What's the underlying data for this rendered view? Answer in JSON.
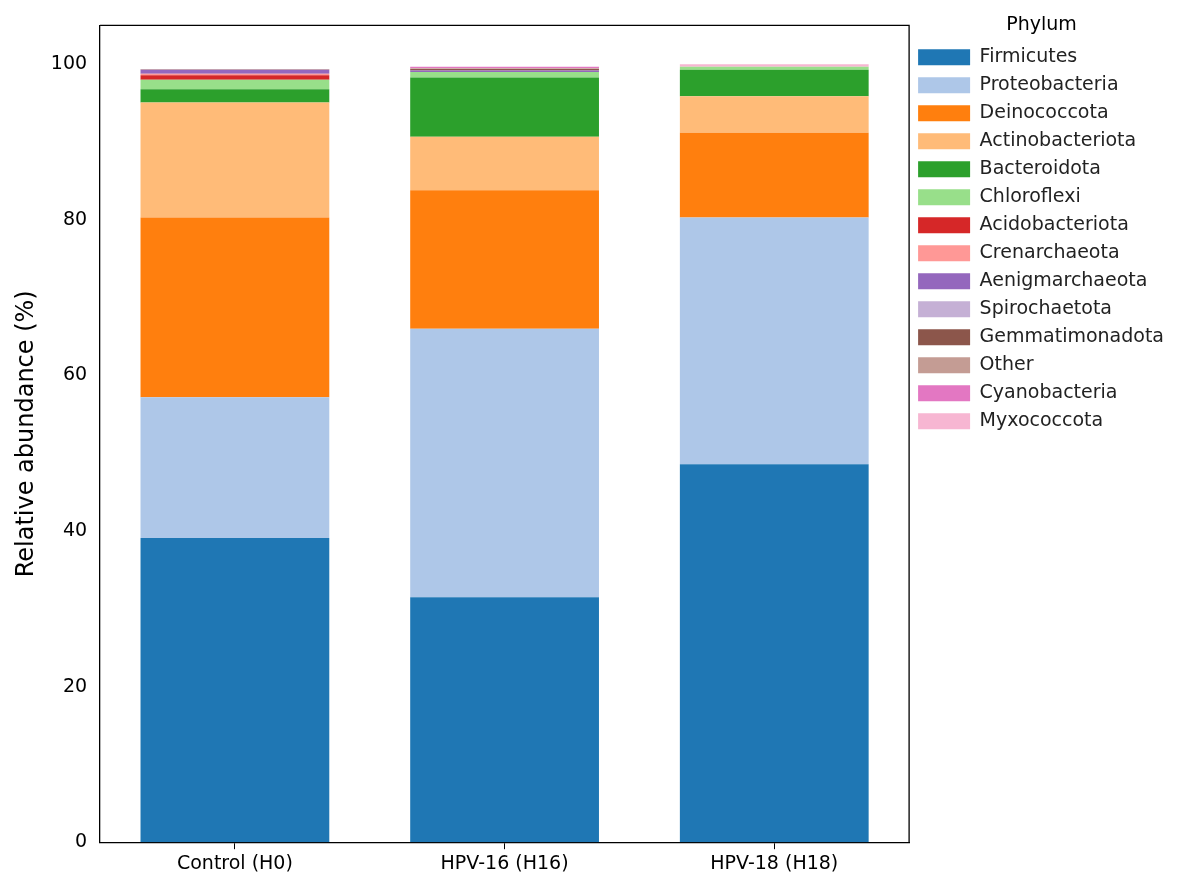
{
  "chart_data": {
    "type": "bar",
    "stacked": true,
    "ylabel": "Relative abundance (%)",
    "legend_title": "Phylum",
    "legend": "right",
    "grid": false,
    "categories": [
      "Control (H0)",
      "HPV-16 (H16)",
      "HPV-18 (H18)"
    ],
    "ylim": [
      0,
      105
    ],
    "yticks": [
      0,
      20,
      40,
      60,
      80,
      100
    ],
    "series": [
      {
        "name": "Firmicutes",
        "color": "#1f77b4",
        "values": [
          39.1,
          31.5,
          48.6
        ]
      },
      {
        "name": "Proteobacteria",
        "color": "#aec7e8",
        "values": [
          18.1,
          34.5,
          31.7
        ]
      },
      {
        "name": "Deinococcota",
        "color": "#ff7f0e",
        "values": [
          23.1,
          17.8,
          10.9
        ]
      },
      {
        "name": "Actinobacteriota",
        "color": "#ffbb78",
        "values": [
          14.8,
          6.9,
          4.7
        ]
      },
      {
        "name": "Bacteroidota",
        "color": "#2ca02c",
        "values": [
          1.7,
          7.6,
          3.4
        ]
      },
      {
        "name": "Chloroflexi",
        "color": "#98df8a",
        "values": [
          1.2,
          0.7,
          0.4
        ]
      },
      {
        "name": "Acidobacteriota",
        "color": "#d62728",
        "values": [
          0.6,
          null,
          0
        ]
      },
      {
        "name": "Crenarchaeota",
        "color": "#ff9896",
        "values": [
          0.2,
          0,
          0
        ]
      },
      {
        "name": "Aenigmarchaeota",
        "color": "#9467bd",
        "values": [
          0.5,
          0.2,
          0
        ]
      },
      {
        "name": "Spirochaetota",
        "color": "#c5b0d5",
        "values": [
          null,
          null,
          0
        ]
      },
      {
        "name": "Gemmatimonadota",
        "color": "#8c564b",
        "values": [
          null,
          0.2,
          0
        ]
      },
      {
        "name": "Other",
        "color": "#c49c94",
        "values": [
          0.1,
          0.1,
          0
        ]
      },
      {
        "name": "Cyanobacteria",
        "color": "#e377c2",
        "values": [
          0,
          0.2,
          0
        ]
      },
      {
        "name": "Myxococcota",
        "color": "#f7b6d2",
        "values": [
          0,
          0,
          0.3
        ]
      }
    ]
  }
}
